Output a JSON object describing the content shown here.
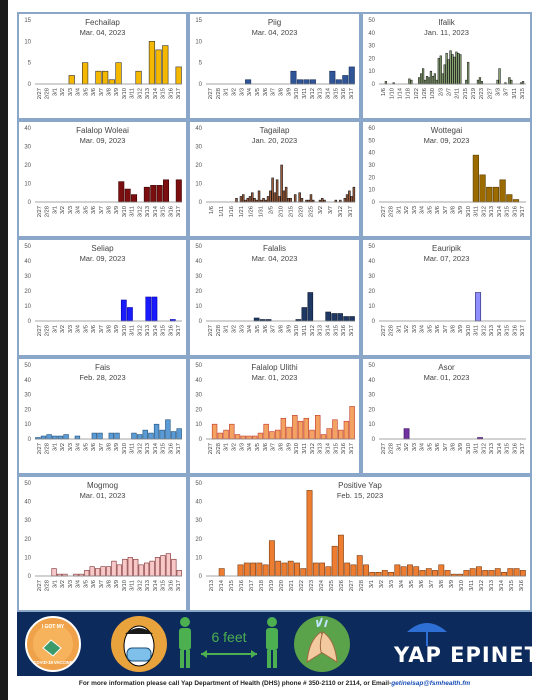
{
  "colors": {
    "panel_border": "#8aa6c8",
    "banner_bg": "#0d2a5c",
    "axis": "#888888"
  },
  "charts": [
    {
      "title": "Fechailap",
      "date": "Mar. 04, 2023",
      "color": "#f5b800",
      "edge": "#333333",
      "ymax": 15,
      "yticks": [
        0,
        5,
        10,
        15
      ],
      "xlabels": [
        "2/27",
        "2/28",
        "3/1",
        "3/2",
        "3/3",
        "3/4",
        "3/5",
        "3/6",
        "3/7",
        "3/8",
        "3/9",
        "3/10",
        "3/11",
        "3/12",
        "3/13",
        "3/14",
        "3/15",
        "3/16",
        "3/17"
      ]
    },
    {
      "title": "Piig",
      "date": "Mar. 04, 2023",
      "color": "#2f5597",
      "edge": "#1a2f5a",
      "ymax": 15,
      "yticks": [
        0,
        5,
        10,
        15
      ],
      "xlabels": [
        "2/27",
        "2/28",
        "3/1",
        "3/2",
        "3/3",
        "3/4",
        "3/5",
        "3/6",
        "3/7",
        "3/8",
        "3/9",
        "3/10",
        "3/11",
        "3/12",
        "3/13",
        "3/14",
        "3/15",
        "3/16",
        "3/17"
      ]
    },
    {
      "title": "Ifalik",
      "date": "Jan. 11, 2023",
      "color": "#8aa872",
      "edge": "#222222",
      "ymax": 50,
      "yticks": [
        0,
        10,
        20,
        30,
        40,
        50
      ],
      "xlabels": [
        "1/6",
        "1/10",
        "1/14",
        "1/18",
        "1/22",
        "1/26",
        "1/30",
        "2/3",
        "2/7",
        "2/11",
        "2/15",
        "2/19",
        "2/23",
        "2/27",
        "3/3",
        "3/7",
        "3/11",
        "3/15"
      ]
    },
    {
      "title": "Falalop Woleai",
      "date": "Mar. 09, 2023",
      "color": "#7b0f10",
      "edge": "#3a0000",
      "ymax": 40,
      "yticks": [
        0,
        10,
        20,
        30,
        40
      ],
      "xlabels": [
        "2/27",
        "2/28",
        "3/1",
        "3/2",
        "3/3",
        "3/4",
        "3/5",
        "3/6",
        "3/7",
        "3/8",
        "3/9",
        "3/10",
        "3/11",
        "3/12",
        "3/13",
        "3/14",
        "3/15",
        "3/16",
        "3/17"
      ]
    },
    {
      "title": "Tagailap",
      "date": "Jan. 20, 2023",
      "color": "#9e5b3a",
      "edge": "#1a1a1a",
      "ymax": 40,
      "yticks": [
        0,
        10,
        20,
        30,
        40
      ],
      "xlabels": [
        "1/6",
        "1/11",
        "1/16",
        "1/21",
        "1/26",
        "1/31",
        "2/5",
        "2/10",
        "2/15",
        "2/20",
        "2/25",
        "3/2",
        "3/7",
        "3/12",
        "3/17"
      ]
    },
    {
      "title": "Wottegai",
      "date": "Mar. 09, 2023",
      "color": "#9c6b00",
      "edge": "#5a3c00",
      "ymax": 60,
      "yticks": [
        0,
        10,
        20,
        30,
        40,
        50,
        60
      ],
      "xlabels": [
        "2/27",
        "2/28",
        "3/1",
        "3/2",
        "3/3",
        "3/4",
        "3/5",
        "3/6",
        "3/7",
        "3/8",
        "3/9",
        "3/10",
        "3/11",
        "3/12",
        "3/13",
        "3/14",
        "3/15",
        "3/16",
        "3/17"
      ]
    },
    {
      "title": "Seliap",
      "date": "Mar. 09, 2023",
      "color": "#1a1aff",
      "edge": "#0000aa",
      "ymax": 50,
      "yticks": [
        0,
        10,
        20,
        30,
        40,
        50
      ],
      "xlabels": [
        "2/27",
        "2/28",
        "3/1",
        "3/2",
        "3/3",
        "3/4",
        "3/5",
        "3/6",
        "3/7",
        "3/8",
        "3/9",
        "3/10",
        "3/11",
        "3/12",
        "3/13",
        "3/14",
        "3/15",
        "3/16",
        "3/17"
      ]
    },
    {
      "title": "Falalis",
      "date": "Mar. 04, 2023",
      "color": "#1f3864",
      "edge": "#0f1c32",
      "ymax": 50,
      "yticks": [
        0,
        10,
        20,
        30,
        40,
        50
      ],
      "xlabels": [
        "2/27",
        "2/28",
        "3/1",
        "3/2",
        "3/3",
        "3/4",
        "3/5",
        "3/6",
        "3/7",
        "3/8",
        "3/9",
        "3/10",
        "3/11",
        "3/12",
        "3/13",
        "3/14",
        "3/15",
        "3/16",
        "3/17"
      ]
    },
    {
      "title": "Eauripik",
      "date": "Mar. 07, 2023",
      "color": "#8f8fff",
      "edge": "#222266",
      "ymax": 50,
      "yticks": [
        0,
        10,
        20,
        30,
        40,
        50
      ],
      "xlabels": [
        "2/27",
        "2/28",
        "3/1",
        "3/2",
        "3/3",
        "3/4",
        "3/5",
        "3/6",
        "3/7",
        "3/8",
        "3/9",
        "3/10",
        "3/11",
        "3/12",
        "3/13",
        "3/14",
        "3/15",
        "3/16",
        "3/17"
      ]
    },
    {
      "title": "Fais",
      "date": "Feb. 28, 2023",
      "color": "#5b9bd5",
      "edge": "#1f4e79",
      "ymax": 50,
      "yticks": [
        0,
        10,
        20,
        30,
        40,
        50
      ],
      "xlabels": [
        "2/27",
        "2/28",
        "3/1",
        "3/2",
        "3/3",
        "3/4",
        "3/5",
        "3/6",
        "3/7",
        "3/8",
        "3/9",
        "3/10",
        "3/11",
        "3/12",
        "3/13",
        "3/14",
        "3/15",
        "3/16",
        "3/17"
      ]
    },
    {
      "title": "Falalop Ulithi",
      "date": "Mar. 01, 2023",
      "color": "#f4a261",
      "edge": "#c0392b",
      "ymax": 50,
      "yticks": [
        0,
        10,
        20,
        30,
        40,
        50
      ],
      "xlabels": [
        "2/27",
        "2/28",
        "3/1",
        "3/2",
        "3/3",
        "3/4",
        "3/5",
        "3/6",
        "3/7",
        "3/8",
        "3/9",
        "3/10",
        "3/11",
        "3/12",
        "3/13",
        "3/14",
        "3/15",
        "3/16",
        "3/17"
      ]
    },
    {
      "title": "Asor",
      "date": "Mar. 01, 2023",
      "color": "#7030a0",
      "edge": "#3a1060",
      "ymax": 50,
      "yticks": [
        0,
        10,
        20,
        30,
        40,
        50
      ],
      "xlabels": [
        "2/27",
        "2/28",
        "3/1",
        "3/2",
        "3/3",
        "3/4",
        "3/5",
        "3/6",
        "3/7",
        "3/8",
        "3/9",
        "3/10",
        "3/11",
        "3/12",
        "3/13",
        "3/14",
        "3/15",
        "3/16",
        "3/17"
      ]
    },
    {
      "title": "Mogmog",
      "date": "Mar. 01, 2023",
      "color": "#f8c8c8",
      "edge": "#7a2a2a",
      "ymax": 50,
      "yticks": [
        0,
        10,
        20,
        30,
        40,
        50
      ],
      "xlabels": [
        "2/27",
        "2/28",
        "3/1",
        "3/2",
        "3/3",
        "3/4",
        "3/5",
        "3/6",
        "3/7",
        "3/8",
        "3/9",
        "3/10",
        "3/11",
        "3/12",
        "3/13",
        "3/14",
        "3/15",
        "3/16",
        "3/17"
      ]
    },
    {
      "title": "Positive Yap",
      "date": "Feb. 15, 2023",
      "color": "#ed7d31",
      "edge": "#7a3a10",
      "ymax": 50,
      "yticks": [
        0,
        10,
        20,
        30,
        40,
        50
      ],
      "xlabels": [
        "2/13",
        "2/14",
        "2/15",
        "2/16",
        "2/17",
        "2/18",
        "2/19",
        "2/20",
        "2/21",
        "2/22",
        "2/23",
        "2/24",
        "2/25",
        "2/26",
        "2/27",
        "2/28",
        "3/1",
        "3/2",
        "3/3",
        "3/4",
        "3/5",
        "3/6",
        "3/7",
        "3/8",
        "3/9",
        "3/10",
        "3/11",
        "3/12",
        "3/13",
        "3/14",
        "3/15",
        "3/16"
      ]
    }
  ],
  "chart_data": [
    {
      "type": "bar",
      "title": "Fechailap",
      "subtitle": "Mar. 04, 2023",
      "ylim": [
        0,
        15
      ],
      "values": [
        0,
        0,
        0,
        0,
        0,
        2,
        0,
        5,
        0,
        3,
        3,
        1,
        5,
        0,
        0,
        3,
        0,
        10,
        8,
        9,
        0,
        4
      ]
    },
    {
      "type": "bar",
      "title": "Piig",
      "subtitle": "Mar. 04, 2023",
      "ylim": [
        0,
        15
      ],
      "values": [
        0,
        0,
        0,
        0,
        0,
        0,
        1,
        0,
        0,
        0,
        0,
        0,
        0,
        3,
        1,
        1,
        1,
        0,
        0,
        3,
        1,
        2,
        4
      ]
    },
    {
      "type": "bar",
      "title": "Ifalik",
      "subtitle": "Jan. 11, 2023",
      "ylim": [
        0,
        50
      ],
      "values": [
        0,
        0,
        0,
        2,
        0,
        0,
        0,
        1,
        0,
        0,
        0,
        0,
        0,
        0,
        0,
        4,
        3,
        0,
        0,
        0,
        5,
        8,
        12,
        3,
        6,
        5,
        10,
        6,
        8,
        3,
        20,
        22,
        8,
        15,
        24,
        19,
        26,
        23,
        21,
        25,
        24,
        23,
        0,
        0,
        3,
        17,
        0,
        0,
        0,
        0,
        3,
        5,
        2,
        0,
        0,
        0,
        0,
        0,
        0,
        0,
        3,
        12,
        0,
        0,
        1,
        0,
        5,
        3,
        0,
        0,
        0,
        0,
        1,
        2,
        0
      ]
    },
    {
      "type": "bar",
      "title": "Falalop Woleai",
      "subtitle": "Mar. 09, 2023",
      "ylim": [
        0,
        40
      ],
      "values": [
        0,
        0,
        0,
        0,
        0,
        0,
        0,
        0,
        0,
        0,
        0,
        0,
        0,
        11,
        7,
        4,
        0,
        8,
        9,
        9,
        12,
        0,
        12
      ]
    },
    {
      "type": "bar",
      "title": "Tagailap",
      "subtitle": "Jan. 20, 2023",
      "ylim": [
        0,
        40
      ],
      "values": [
        0,
        0,
        0,
        0,
        0,
        0,
        0,
        0,
        0,
        0,
        0,
        0,
        0,
        2,
        0,
        3,
        4,
        1,
        2,
        3,
        5,
        2,
        1,
        6,
        1,
        2,
        1,
        3,
        6,
        13,
        5,
        12,
        3,
        20,
        6,
        8,
        2,
        2,
        0,
        4,
        0,
        5,
        2,
        0,
        1,
        1,
        4,
        1,
        0,
        0,
        1,
        2,
        1,
        0,
        0,
        0,
        0,
        1,
        0,
        1,
        0,
        2,
        4,
        6,
        3,
        8
      ]
    },
    {
      "type": "bar",
      "title": "Wottegai",
      "subtitle": "Mar. 09, 2023",
      "ylim": [
        0,
        60
      ],
      "values": [
        0,
        0,
        0,
        0,
        0,
        0,
        0,
        0,
        0,
        0,
        0,
        0,
        0,
        0,
        38,
        22,
        12,
        12,
        18,
        6,
        2,
        0
      ]
    },
    {
      "type": "bar",
      "title": "Seliap",
      "subtitle": "Mar. 09, 2023",
      "ylim": [
        0,
        50
      ],
      "values": [
        0,
        0,
        0,
        0,
        0,
        0,
        0,
        0,
        0,
        0,
        0,
        0,
        0,
        0,
        14,
        9,
        0,
        0,
        16,
        16,
        0,
        0,
        1,
        0
      ]
    },
    {
      "type": "bar",
      "title": "Falalis",
      "subtitle": "Mar. 04, 2023",
      "ylim": [
        0,
        50
      ],
      "values": [
        0,
        0,
        0,
        0,
        0,
        0,
        0,
        0,
        2,
        1,
        1,
        0,
        0,
        0,
        0,
        1,
        9,
        19,
        0,
        0,
        6,
        5,
        5,
        3,
        3
      ]
    },
    {
      "type": "bar",
      "title": "Eauripik",
      "subtitle": "Mar. 07, 2023",
      "ylim": [
        0,
        50
      ],
      "values": [
        0,
        0,
        0,
        0,
        0,
        0,
        0,
        0,
        0,
        0,
        0,
        0,
        0,
        0,
        0,
        19,
        0,
        0,
        0,
        0,
        0,
        0,
        0
      ]
    },
    {
      "type": "bar",
      "title": "Fais",
      "subtitle": "Feb. 28, 2023",
      "ylim": [
        0,
        50
      ],
      "values": [
        1,
        2,
        3,
        2,
        2,
        3,
        0,
        2,
        0,
        0,
        4,
        4,
        0,
        4,
        4,
        0,
        0,
        4,
        3,
        6,
        4,
        10,
        6,
        13,
        5,
        7
      ]
    },
    {
      "type": "bar",
      "title": "Falalop Ulithi",
      "subtitle": "Mar. 01, 2023",
      "ylim": [
        0,
        50
      ],
      "values": [
        0,
        10,
        4,
        6,
        10,
        3,
        2,
        2,
        2,
        4,
        10,
        5,
        6,
        14,
        8,
        16,
        12,
        14,
        6,
        16,
        3,
        7,
        13,
        6,
        12,
        22
      ]
    },
    {
      "type": "bar",
      "title": "Asor",
      "subtitle": "Mar. 01, 2023",
      "ylim": [
        0,
        50
      ],
      "values": [
        0,
        0,
        0,
        0,
        7,
        0,
        0,
        0,
        0,
        0,
        0,
        0,
        0,
        0,
        0,
        0,
        1,
        0,
        0,
        0,
        0,
        0,
        0,
        0
      ]
    },
    {
      "type": "bar",
      "title": "Mogmog",
      "subtitle": "Mar. 01, 2023",
      "ylim": [
        0,
        50
      ],
      "values": [
        0,
        0,
        0,
        4,
        1,
        1,
        0,
        1,
        1,
        3,
        5,
        4,
        5,
        5,
        8,
        6,
        9,
        10,
        9,
        6,
        7,
        8,
        10,
        11,
        12,
        9,
        3
      ]
    },
    {
      "type": "bar",
      "title": "Positive Yap",
      "subtitle": "Feb. 15, 2023",
      "ylim": [
        0,
        50
      ],
      "values": [
        0,
        0,
        4,
        0,
        0,
        6,
        7,
        7,
        7,
        6,
        19,
        8,
        7,
        8,
        7,
        4,
        46,
        7,
        7,
        5,
        16,
        22,
        7,
        6,
        11,
        6,
        2,
        2,
        3,
        2,
        6,
        5,
        6,
        5,
        3,
        4,
        3,
        6,
        3,
        1,
        1,
        3,
        4,
        5,
        3,
        3,
        4,
        2,
        4,
        4,
        3
      ]
    }
  ],
  "banner": {
    "vaccine_text_top": "I GOT MY",
    "vaccine_text_bottom": "COVID-19 VACCINE",
    "distance_label": "6 feet",
    "brand": "YAP EPINET"
  },
  "footer": {
    "text": "For more information please call Yap Department of Health (DHS) phone # 350-2110 or 2114, or Email-",
    "email": "getineisap@fsmhealth.fm"
  }
}
